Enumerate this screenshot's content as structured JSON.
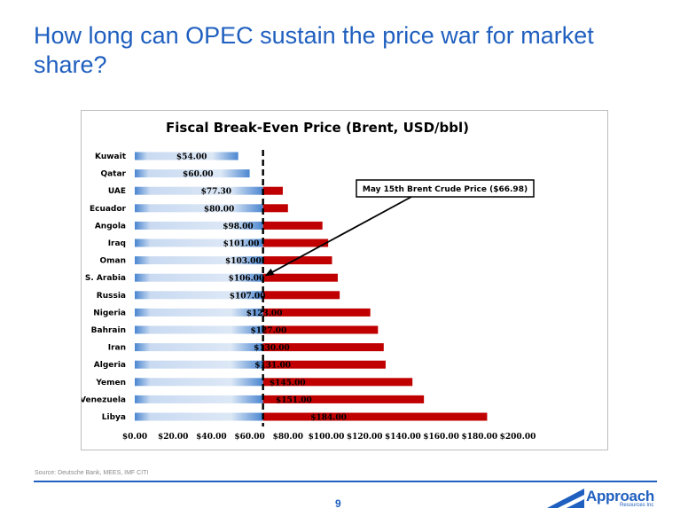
{
  "slide": {
    "title": "How long can OPEC sustain the price war for market share?",
    "source": "Source: Deutsche Bank, MEES, IMF CITI",
    "page_number": "9"
  },
  "logo": {
    "name": "Approach",
    "tagline": "Resources Inc"
  },
  "colors": {
    "title": "#1f5fbf",
    "bar_below": "#4a86d0",
    "bar_below_light": "#dbe6f5",
    "bar_above": "#c00000",
    "marker_line": "#000000"
  },
  "chart_data": {
    "type": "bar",
    "orientation": "horizontal",
    "title": "Fiscal Break-Even Price (Brent, USD/bbl)",
    "xlabel": "",
    "ylabel": "",
    "xlim": [
      0,
      200
    ],
    "x_ticks": [
      "$0.00",
      "$20.00",
      "$40.00",
      "$60.00",
      "$80.00",
      "$100.00",
      "$120.00",
      "$140.00",
      "$160.00",
      "$180.00",
      "$200.00"
    ],
    "categories": [
      "Kuwait",
      "Qatar",
      "UAE",
      "Ecuador",
      "Angola",
      "Iraq",
      "Oman",
      "S. Arabia",
      "Russia",
      "Nigeria",
      "Bahrain",
      "Iran",
      "Algeria",
      "Yemen",
      "Venezuela",
      "Libya"
    ],
    "values": [
      54,
      60,
      77.3,
      80,
      98,
      101,
      103,
      106,
      107,
      123,
      127,
      130,
      131,
      145,
      151,
      184
    ],
    "value_labels": [
      "$54.00",
      "$60.00",
      "$77.30",
      "$80.00",
      "$98.00",
      "$101.00",
      "$103.00",
      "$106.00",
      "$107.00",
      "$123.00",
      "$127.00",
      "$130.00",
      "$131.00",
      "$145.00",
      "$151.00",
      "$184.00"
    ],
    "reference_line": {
      "value": 66.98,
      "label": "May 15th Brent Crude Price  ($66.98)",
      "style": "dashed"
    },
    "grid": false,
    "legend": "none"
  }
}
